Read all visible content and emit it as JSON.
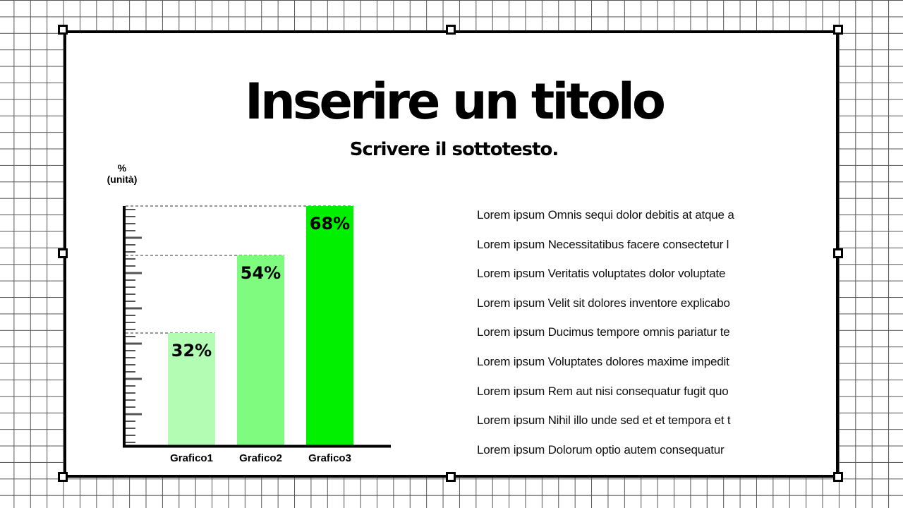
{
  "slide": {
    "title": "Inserire un titolo",
    "subtitle": "Scrivere il sottotesto."
  },
  "chart_data": {
    "type": "bar",
    "ylabel_line1": "%",
    "ylabel_line2": "(unità)",
    "categories": [
      "Grafico1",
      "Grafico2",
      "Grafico3"
    ],
    "values": [
      32,
      54,
      68
    ],
    "value_labels": [
      "32%",
      "54%",
      "68%"
    ],
    "colors": [
      "#b3fcb3",
      "#7ffb7f",
      "#00f000"
    ],
    "grid": false,
    "ylim": [
      0,
      68
    ]
  },
  "text_list": [
    "Lorem ipsum Omnis sequi dolor debitis at atque a",
    "Lorem ipsum Necessitatibus facere consectetur l",
    "Lorem ipsum Veritatis voluptates dolor voluptate",
    "Lorem ipsum Velit sit dolores inventore explicabo",
    "Lorem ipsum Ducimus tempore omnis pariatur te",
    "Lorem ipsum Voluptates dolores maxime impedit",
    "Lorem ipsum Rem aut nisi consequatur fugit quo",
    "Lorem ipsum Nihil illo unde sed et et tempora et t",
    "Lorem ipsum Dolorum optio autem consequatur"
  ]
}
